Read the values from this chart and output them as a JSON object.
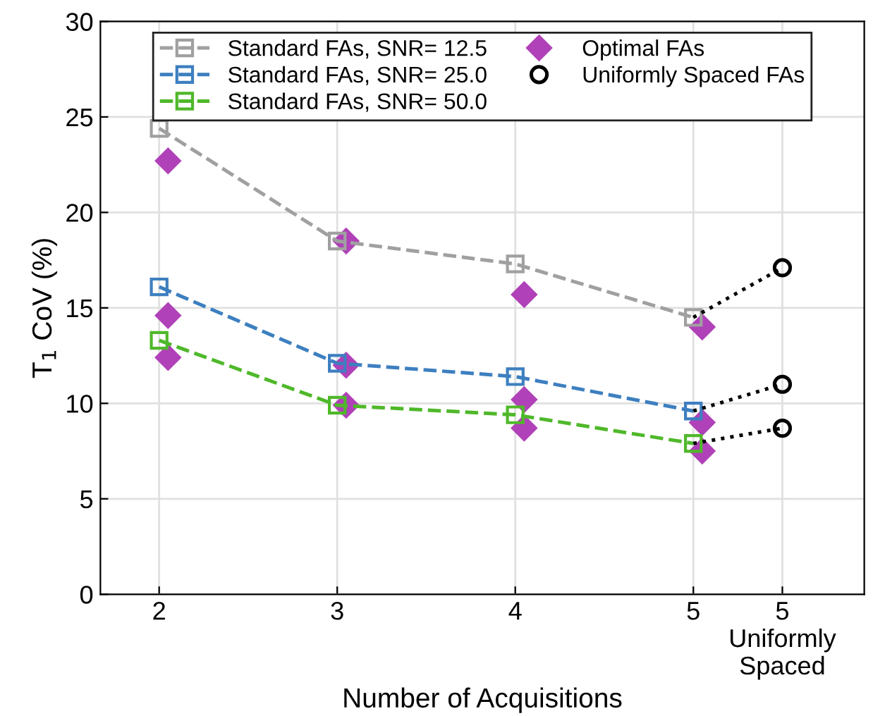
{
  "chart_data": {
    "type": "line",
    "xlabel": "Number of Acquisitions",
    "ylabel": "T$_{1}$ CoV (%)",
    "xlim": [
      1.67,
      5.96
    ],
    "xticks": [
      2,
      3,
      4,
      5,
      {
        "value": 5.5,
        "label": "5\nUniformly\nSpaced"
      }
    ],
    "ylim": [
      0,
      30
    ],
    "yticks": [
      0,
      5,
      10,
      15,
      20,
      25,
      30
    ],
    "grid": true,
    "legend": "top",
    "series": [
      {
        "name": "Standard FAs, SNR= 12.5",
        "marker": "square",
        "line_style": "dashed",
        "color": "#a0a0a0",
        "x": [
          2,
          3,
          4,
          5
        ],
        "values": [
          24.4,
          18.5,
          17.3,
          14.5
        ]
      },
      {
        "name": "Standard FAs, SNR= 25.0",
        "marker": "square",
        "line_style": "dashed",
        "color": "#3d7fc0",
        "x": [
          2,
          3,
          4,
          5
        ],
        "values": [
          16.1,
          12.1,
          11.4,
          9.6
        ]
      },
      {
        "name": "Standard FAs, SNR= 50.0",
        "marker": "square",
        "line_style": "dashed",
        "color": "#4fb82a",
        "x": [
          2,
          3,
          4,
          5
        ],
        "values": [
          13.3,
          9.9,
          9.4,
          7.9
        ]
      },
      {
        "name": "Optimal FAs",
        "type": "scatter",
        "marker": "diamond",
        "color": "#b041b8",
        "x": [
          2.05,
          2.05,
          2.05,
          3.05,
          3.05,
          3.05,
          4.05,
          4.05,
          4.05,
          5.05,
          5.05,
          5.05
        ],
        "values": [
          22.7,
          14.6,
          12.4,
          18.5,
          12.0,
          9.9,
          15.7,
          10.2,
          8.7,
          14.0,
          9.0,
          7.5
        ]
      },
      {
        "type": "line",
        "marker": "none",
        "line_style": "dotted",
        "color": "#000000",
        "x": [
          5,
          5.5
        ],
        "values": [
          14.5,
          17.1
        ]
      },
      {
        "type": "line",
        "marker": "none",
        "line_style": "dotted",
        "color": "#000000",
        "x": [
          5,
          5.5
        ],
        "values": [
          9.6,
          11.0
        ]
      },
      {
        "type": "line",
        "marker": "none",
        "line_style": "dotted",
        "color": "#000000",
        "x": [
          5,
          5.5
        ],
        "values": [
          7.9,
          8.7
        ]
      },
      {
        "name": "Uniformly Spaced FAs",
        "type": "scatter",
        "marker": "circle",
        "color": "#000000",
        "x": [
          5.5,
          5.5,
          5.5
        ],
        "values": [
          17.1,
          11.0,
          8.7
        ]
      }
    ]
  }
}
